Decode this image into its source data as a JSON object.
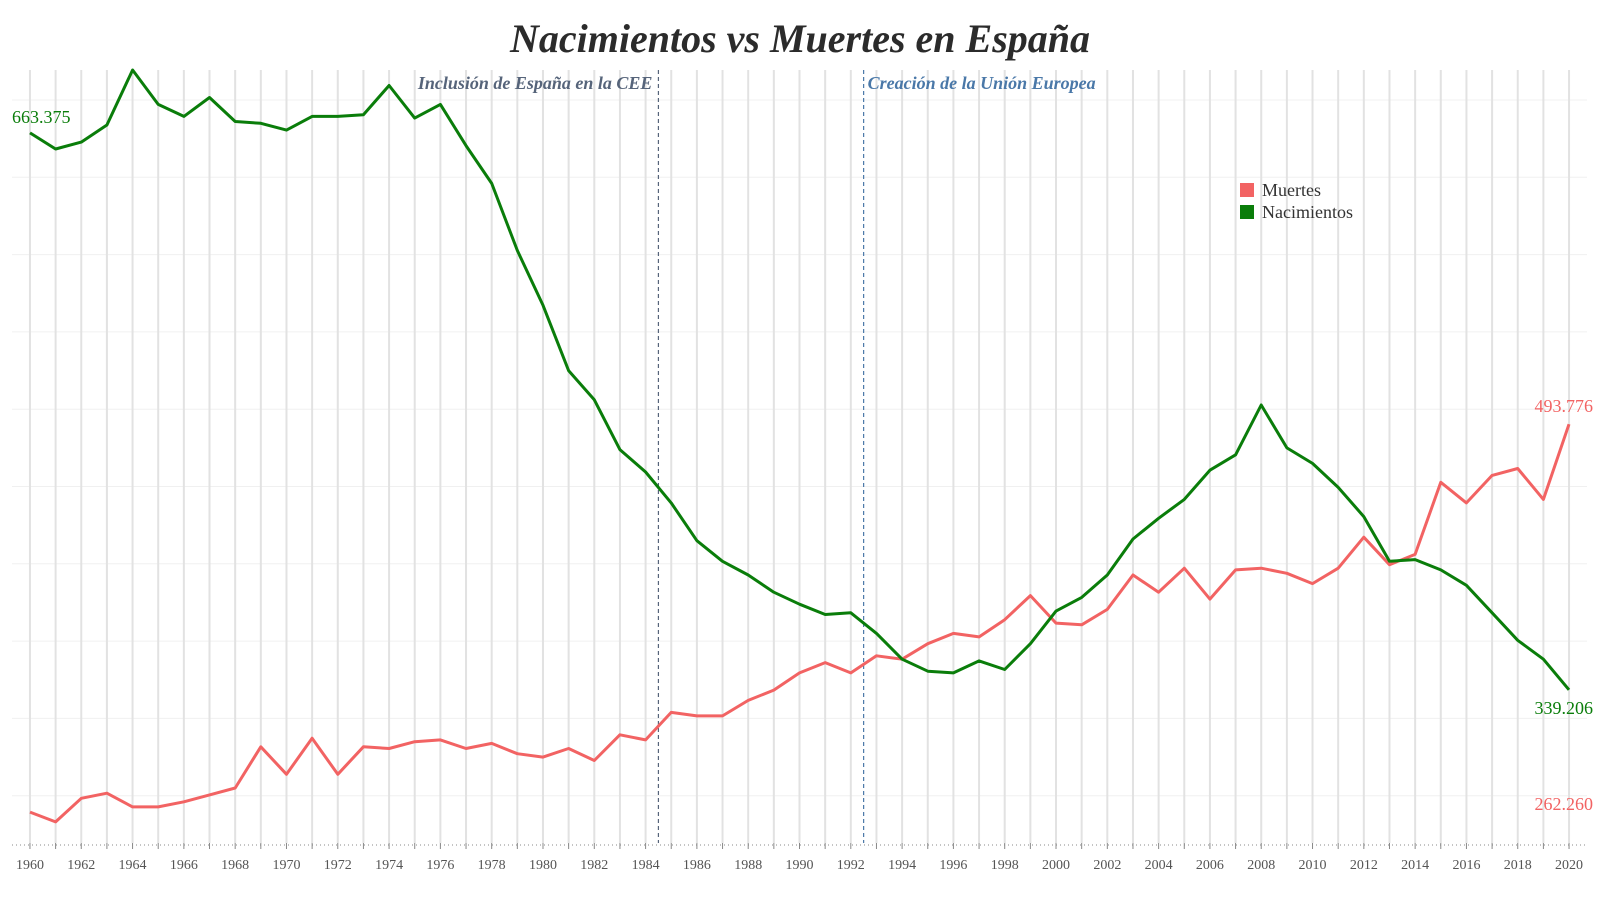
{
  "chart_data": {
    "type": "line",
    "title": "Nacimientos vs Muertes en España",
    "xlabel": "",
    "ylabel": "",
    "x": [
      1960,
      1961,
      1962,
      1963,
      1964,
      1965,
      1966,
      1967,
      1968,
      1969,
      1970,
      1971,
      1972,
      1973,
      1974,
      1975,
      1976,
      1977,
      1978,
      1979,
      1980,
      1981,
      1982,
      1983,
      1984,
      1985,
      1986,
      1987,
      1988,
      1989,
      1990,
      1991,
      1992,
      1993,
      1994,
      1995,
      1996,
      1997,
      1998,
      1999,
      2000,
      2001,
      2002,
      2003,
      2004,
      2005,
      2006,
      2007,
      2008,
      2009,
      2010,
      2011,
      2012,
      2013,
      2014,
      2015,
      2016,
      2017,
      2018,
      2019,
      2020
    ],
    "xlim": [
      1959.3,
      2020.7
    ],
    "ylim": [
      250000,
      700000
    ],
    "x_ticks": [
      "1960",
      "1962",
      "1964",
      "1966",
      "1968",
      "1970",
      "1972",
      "1974",
      "1976",
      "1978",
      "1980",
      "1982",
      "1984",
      "1986",
      "1988",
      "1990",
      "1992",
      "1994",
      "1996",
      "1998",
      "2000",
      "2002",
      "2004",
      "2006",
      "2008",
      "2010",
      "2012",
      "2014",
      "2016",
      "2018",
      "2020"
    ],
    "grid": true,
    "legend_position": "top-right",
    "series": [
      {
        "name": "Muertes",
        "color": "#f26363",
        "values": [
          268000,
          262260,
          276000,
          279000,
          271000,
          271000,
          274000,
          278000,
          282000,
          306000,
          290000,
          311000,
          290000,
          306000,
          305000,
          309000,
          310000,
          305000,
          308000,
          302000,
          300000,
          305000,
          298000,
          313000,
          310000,
          326000,
          324000,
          324000,
          333000,
          339000,
          349000,
          355000,
          349000,
          359000,
          357000,
          366000,
          372000,
          370000,
          380000,
          394000,
          378000,
          377000,
          386000,
          406000,
          396000,
          410000,
          392000,
          409000,
          410000,
          407000,
          401000,
          410000,
          428000,
          412000,
          418000,
          460000,
          448000,
          464000,
          468000,
          450000,
          493776
        ]
      },
      {
        "name": "Nacimientos",
        "color": "#0a7d0a",
        "values": [
          663375,
          654000,
          658000,
          668000,
          700000,
          680000,
          673000,
          684000,
          670000,
          669000,
          665000,
          673000,
          673000,
          674000,
          691000,
          672000,
          680000,
          656000,
          634000,
          595000,
          563000,
          525000,
          508000,
          479000,
          466000,
          448000,
          426000,
          414000,
          406000,
          396000,
          389000,
          383000,
          384000,
          372000,
          357000,
          350000,
          349000,
          356000,
          351000,
          366000,
          385000,
          393000,
          406000,
          427000,
          439000,
          450000,
          467000,
          476000,
          505000,
          480000,
          471000,
          457000,
          440000,
          414000,
          415000,
          409000,
          400000,
          384000,
          368000,
          357000,
          339206
        ]
      }
    ],
    "annotations": [
      {
        "x": 1985,
        "text": "Inclusión de España en la CEE",
        "color": "#56647a"
      },
      {
        "x": 1993,
        "text": "Creación de la Unión Europea",
        "color": "#4a78a8"
      }
    ],
    "end_labels": [
      {
        "text": "663.375",
        "color": "#0a7d0a",
        "series": "Nacimientos",
        "index": 0
      },
      {
        "text": "262.260",
        "color": "#f26363",
        "series": "Muertes",
        "index": 1
      },
      {
        "text": "493.776",
        "color": "#f26363",
        "series": "Muertes",
        "index": 60
      },
      {
        "text": "339.206",
        "color": "#0a7d0a",
        "series": "Nacimientos",
        "index": 60
      }
    ]
  }
}
